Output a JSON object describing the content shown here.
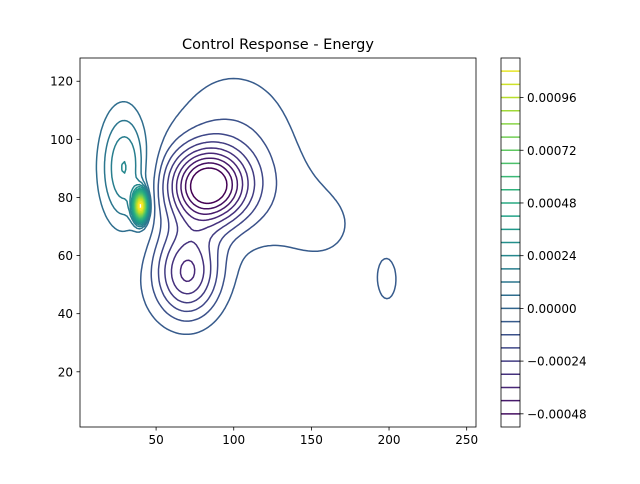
{
  "chart_data": {
    "type": "contour",
    "title": "Control Response - Energy",
    "xlabel": "",
    "ylabel": "",
    "xlim": [
      1,
      256
    ],
    "ylim": [
      1,
      128
    ],
    "x_ticks": [
      50,
      100,
      150,
      200,
      250
    ],
    "y_ticks": [
      20,
      40,
      60,
      80,
      100,
      120
    ],
    "colormap": "viridis",
    "colorbar": {
      "range": [
        -0.00054,
        0.00114
      ],
      "level_step": 6e-05,
      "ticks": [
        -0.00048,
        -0.00024,
        0.0,
        0.00024,
        0.00048,
        0.00072,
        0.00096
      ],
      "tick_labels": [
        "−0.00048",
        "−0.00024",
        "0.00000",
        "0.00024",
        "0.00048",
        "0.00072",
        "0.00096"
      ]
    },
    "features": [
      {
        "kind": "positive-peak",
        "x": 40,
        "y": 77,
        "value": 0.0011
      },
      {
        "kind": "negative-trough",
        "x": 83,
        "y": 84,
        "value": -0.0005
      },
      {
        "kind": "negative-trough",
        "x": 70,
        "y": 54,
        "value": -0.0003
      },
      {
        "kind": "negative-trough",
        "x": 199,
        "y": 51,
        "value": -0.0001
      }
    ]
  }
}
